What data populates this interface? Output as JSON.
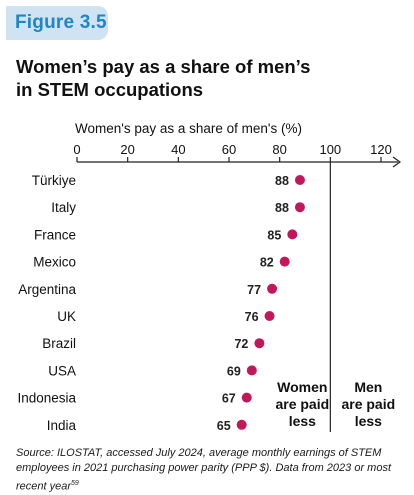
{
  "figure_label": "Figure 3.5",
  "title_line1": "Women’s pay as a share of men’s",
  "title_line2": "in STEM occupations",
  "source_text": "Source: ILOSTAT, accessed July 2024, average monthly earnings of STEM employees in 2021 purchasing power parity (PPP $). Data from 2023 or most recent year",
  "source_footnote": "59",
  "colors": {
    "badge_bg": "#cfe3f2",
    "badge_text": "#1f86c6",
    "dot": "#c2185b"
  },
  "chart_data": {
    "type": "scatter",
    "xlabel": "Women's pay as a share of men's (%)",
    "xlim": [
      0,
      120
    ],
    "x_ticks": [
      0,
      20,
      40,
      60,
      80,
      100,
      120
    ],
    "reference_line": 100,
    "categories": [
      "Türkiye",
      "Italy",
      "France",
      "Mexico",
      "Argentina",
      "UK",
      "Brazil",
      "USA",
      "Indonesia",
      "India"
    ],
    "values": [
      88,
      88,
      85,
      82,
      77,
      76,
      72,
      69,
      67,
      65
    ],
    "annotations": {
      "left_of_line": [
        "Women",
        "are paid",
        "less"
      ],
      "right_of_line": [
        "Men",
        "are paid",
        "less"
      ]
    }
  }
}
